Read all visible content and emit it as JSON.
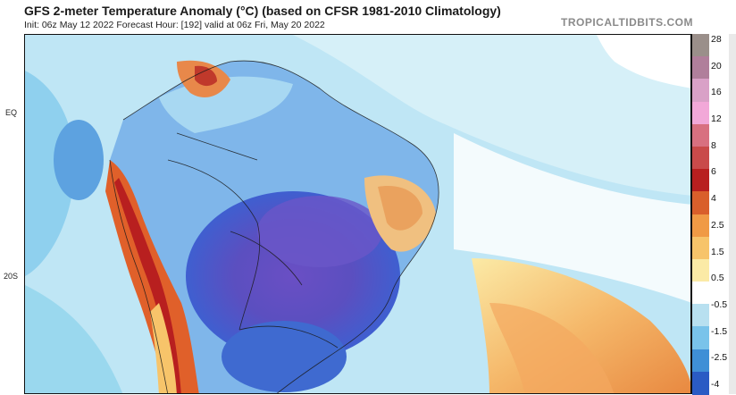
{
  "header": {
    "title": "GFS 2-meter Temperature Anomaly (°C) (based on CFSR 1981-2010 Climatology)",
    "subtitle": "Init: 06z May 12 2022   Forecast Hour: [192]   valid at 06z Fri, May 20 2022",
    "brand": "TROPICALTIDBITS.COM"
  },
  "map": {
    "region": "South America",
    "lat_labels": [
      "EQ",
      "20S"
    ]
  },
  "colorbar": {
    "labels": [
      "28",
      "20",
      "16",
      "12",
      "8",
      "6",
      "4",
      "2.5",
      "1.5",
      "0.5",
      "-0.5",
      "-1.5",
      "-2.5",
      "-4"
    ],
    "colors": [
      "#9a8f8a",
      "#b07f9b",
      "#d9a1c7",
      "#f2a8d8",
      "#d87080",
      "#c94a4a",
      "#b81f1f",
      "#d95f2b",
      "#f09a45",
      "#f7c46a",
      "#fbeaa6",
      "#ffffff",
      "#b8e0f0",
      "#79c3ea",
      "#3f8fd6",
      "#2a5bc4"
    ]
  }
}
